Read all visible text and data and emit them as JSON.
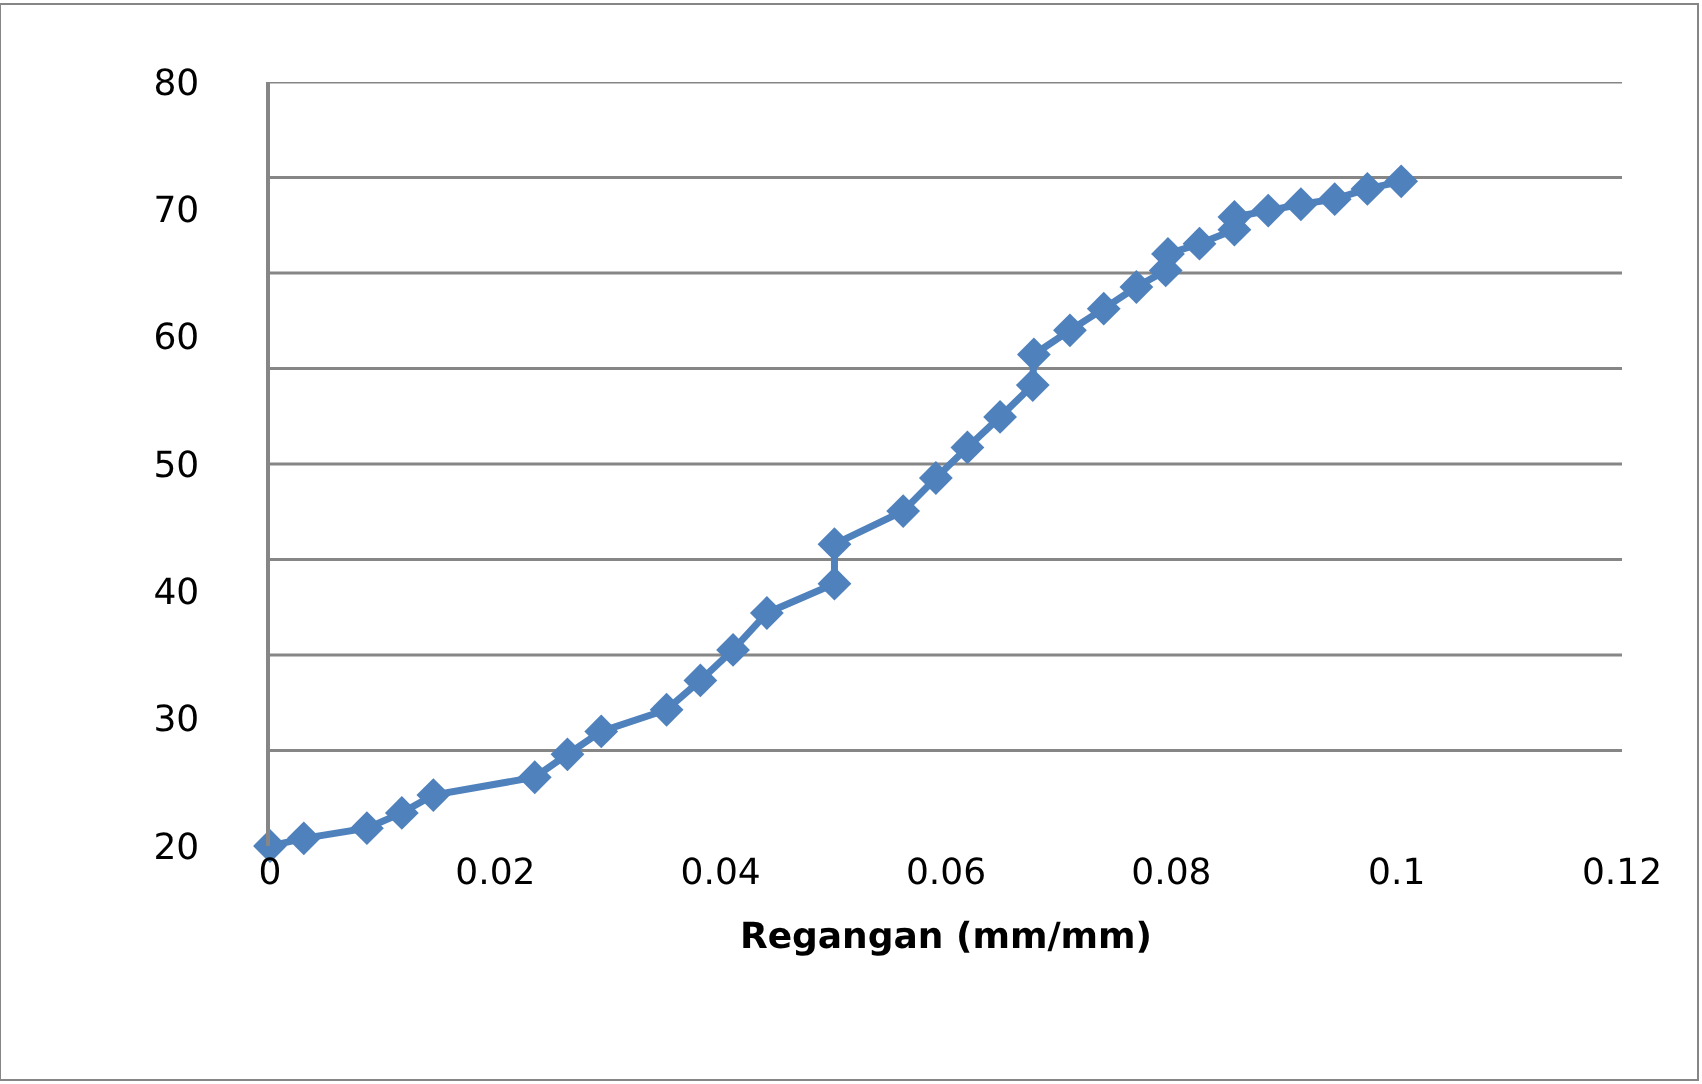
{
  "chart_data": {
    "type": "line",
    "xlabel": "Regangan (mm/mm)",
    "marker": "diamond",
    "line_style": "solid",
    "grid": "y",
    "xlim": [
      0,
      0.12
    ],
    "xticks": [
      0,
      0.02,
      0.04,
      0.06,
      0.08,
      0.1,
      0.12
    ],
    "ylim": [
      20,
      80
    ],
    "yticks": [
      20,
      {
        "value": 27.5,
        "label": null
      },
      30,
      {
        "value": 35,
        "label": null
      },
      40,
      {
        "value": 42.5,
        "label": null
      },
      50,
      {
        "value": 57.5,
        "label": null
      },
      60,
      {
        "value": 65,
        "label": null
      },
      70,
      {
        "value": 72.5,
        "label": null
      },
      80
    ],
    "series": [
      {
        "color": "#4f81bd",
        "x": [
          0,
          0.003,
          0.0086,
          0.0117,
          0.0145,
          0.0235,
          0.0264,
          0.0294,
          0.0352,
          0.0382,
          0.0411,
          0.0441,
          0.0501,
          0.0501,
          0.0562,
          0.0591,
          0.0619,
          0.0648,
          0.0677,
          0.0678,
          0.071,
          0.074,
          0.0769,
          0.0795,
          0.0797,
          0.0825,
          0.0856,
          0.0856,
          0.0886,
          0.0915,
          0.0945,
          0.0974,
          0.1004
        ],
        "values": [
          20,
          20.6,
          21.4,
          22.6,
          24.0,
          25.4,
          27.2,
          29.0,
          30.7,
          33.0,
          35.4,
          38.3,
          40.6,
          43.7,
          46.3,
          48.9,
          51.3,
          53.7,
          56.2,
          58.6,
          60.5,
          62.2,
          63.9,
          65.2,
          66.5,
          67.3,
          68.4,
          69.4,
          69.9,
          70.4,
          70.8,
          71.6,
          72.2
        ]
      }
    ]
  }
}
